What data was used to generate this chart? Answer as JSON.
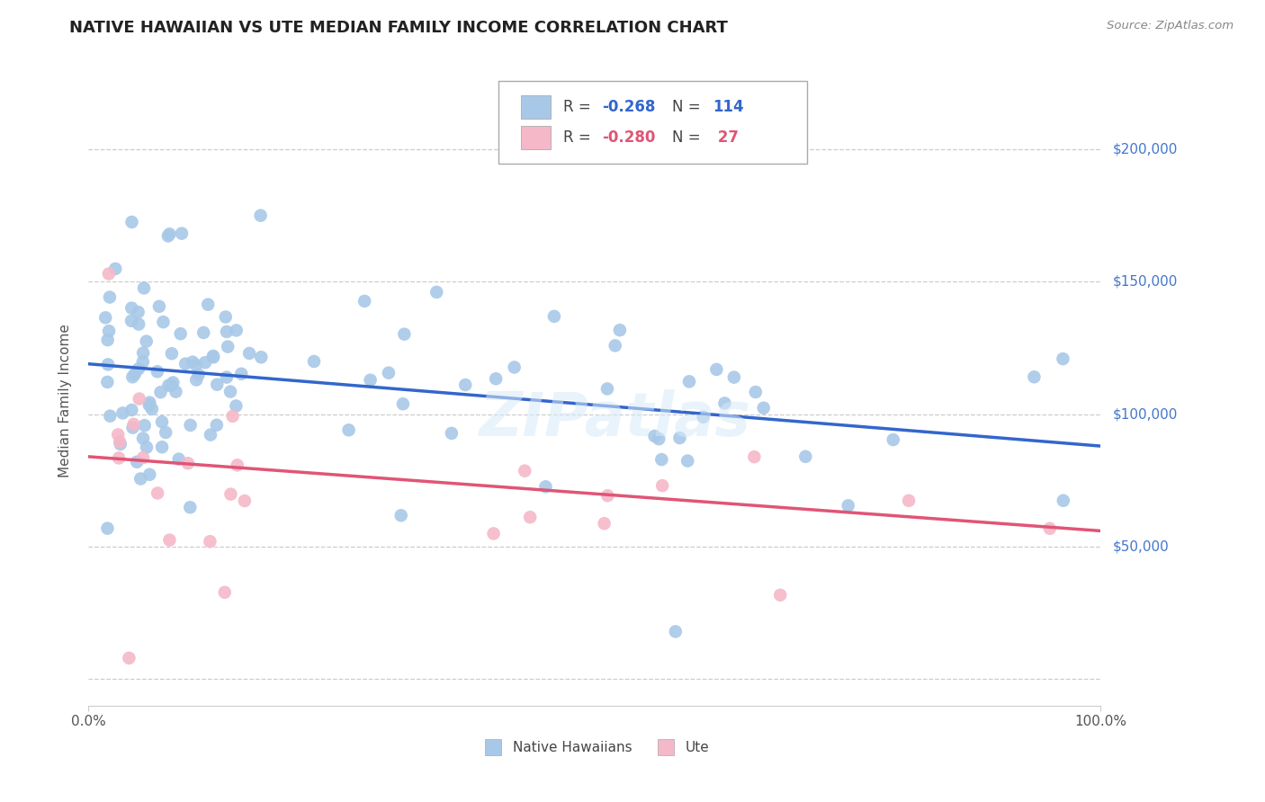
{
  "title": "NATIVE HAWAIIAN VS UTE MEDIAN FAMILY INCOME CORRELATION CHART",
  "source": "Source: ZipAtlas.com",
  "ylabel": "Median Family Income",
  "xlim": [
    0.0,
    1.0
  ],
  "ylim": [
    -10000,
    220000
  ],
  "yticks": [
    0,
    50000,
    100000,
    150000,
    200000
  ],
  "blue_R": -0.268,
  "blue_N": 114,
  "pink_R": -0.28,
  "pink_N": 27,
  "blue_label": "Native Hawaiians",
  "pink_label": "Ute",
  "blue_color": "#a8c8e8",
  "pink_color": "#f5b8c8",
  "blue_line_color": "#3366cc",
  "pink_line_color": "#e05575",
  "background_color": "#ffffff",
  "watermark": "ZIPatlas",
  "title_fontsize": 13,
  "axis_label_fontsize": 11,
  "tick_fontsize": 11,
  "blue_line_x0": 0.0,
  "blue_line_y0": 119000,
  "blue_line_x1": 1.0,
  "blue_line_y1": 88000,
  "pink_line_x0": 0.0,
  "pink_line_y0": 84000,
  "pink_line_x1": 1.0,
  "pink_line_y1": 56000,
  "grid_color": "#cccccc",
  "grid_style": "--",
  "right_label_color": "#4477cc"
}
